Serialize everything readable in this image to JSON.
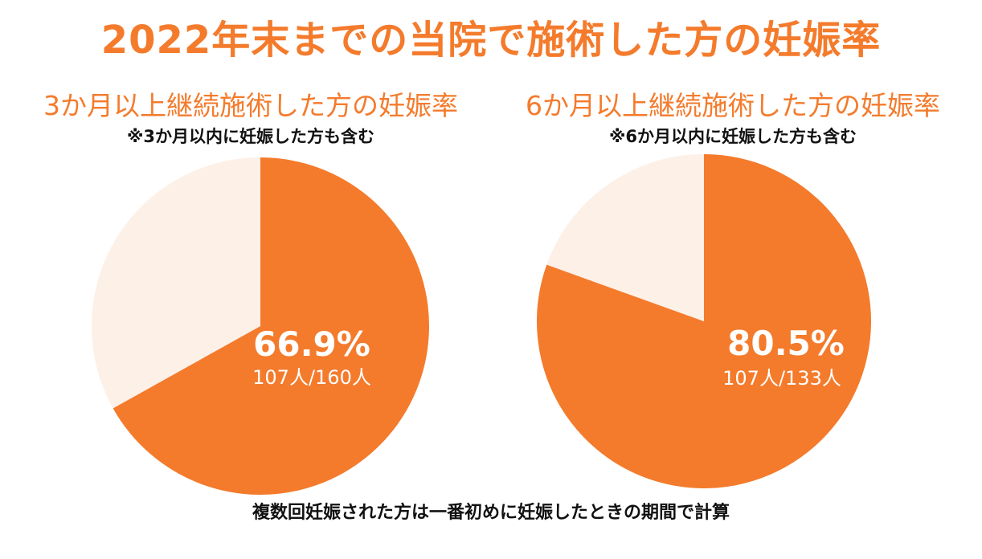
{
  "title": "2022年末までの当院で施術した方の妊娠率",
  "footer": "複数回妊娠された方は一番初めに妊娠したときの期間で計算",
  "colors": {
    "accent": "#f47b2c",
    "remainder": "#fdf0e7",
    "label": "#ffffff"
  },
  "chart_data": [
    {
      "type": "pie",
      "title": "3か月以上継続施術した方の妊娠率",
      "subtitle": "※3か月以内に妊娠した方も含む",
      "slices": [
        {
          "label": "66.9%",
          "value": 66.9,
          "count_label": "107人/160人"
        },
        {
          "label": "",
          "value": 33.1
        }
      ]
    },
    {
      "type": "pie",
      "title": "6か月以上継続施術した方の妊娠率",
      "subtitle": "※6か月以内に妊娠した方も含む",
      "slices": [
        {
          "label": "80.5%",
          "value": 80.5,
          "count_label": "107人/133人"
        },
        {
          "label": "",
          "value": 19.5
        }
      ]
    }
  ]
}
